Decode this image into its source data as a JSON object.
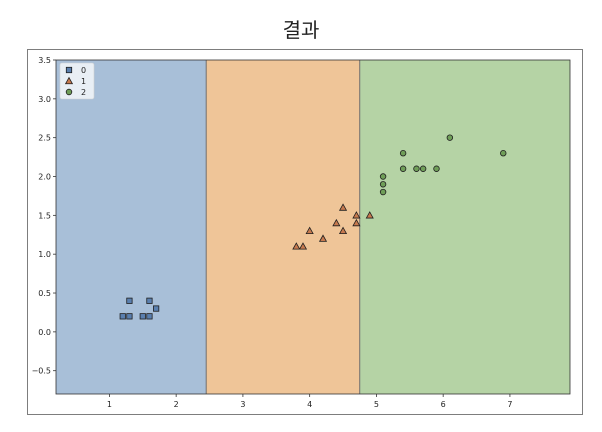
{
  "page": {
    "title": "결과"
  },
  "chart_data": {
    "type": "scatter",
    "xlim": [
      0.2,
      7.9
    ],
    "ylim": [
      -0.8,
      3.5
    ],
    "xticks": [
      1,
      2,
      3,
      4,
      5,
      6,
      7
    ],
    "yticks": [
      3.5,
      3.0,
      2.5,
      2.0,
      1.5,
      1.0,
      0.5,
      0.0,
      -0.5
    ],
    "ytick_labels": [
      "3.5",
      "3.0",
      "2.5",
      "2.0",
      "1.5",
      "1.0",
      "0.5",
      "0.0",
      "−0.5"
    ],
    "grid": false,
    "legend_position": "top-left",
    "regions": [
      {
        "class": "0",
        "x_range": [
          0.2,
          2.45
        ],
        "color": "#a8bfd8"
      },
      {
        "class": "1",
        "x_range": [
          2.45,
          4.75
        ],
        "color": "#efc598"
      },
      {
        "class": "2",
        "x_range": [
          4.75,
          7.9
        ],
        "color": "#b5d3a5"
      }
    ],
    "boundaries": [
      2.45,
      4.75
    ],
    "series": [
      {
        "name": "0",
        "marker": "square",
        "color": "#5a7fae",
        "points": [
          [
            1.2,
            0.2
          ],
          [
            1.3,
            0.2
          ],
          [
            1.3,
            0.4
          ],
          [
            1.5,
            0.2
          ],
          [
            1.6,
            0.2
          ],
          [
            1.6,
            0.4
          ],
          [
            1.7,
            0.3
          ]
        ]
      },
      {
        "name": "1",
        "marker": "triangle",
        "color": "#c7794e",
        "points": [
          [
            3.8,
            1.1
          ],
          [
            3.9,
            1.1
          ],
          [
            4.0,
            1.3
          ],
          [
            4.2,
            1.2
          ],
          [
            4.4,
            1.4
          ],
          [
            4.5,
            1.3
          ],
          [
            4.5,
            1.6
          ],
          [
            4.7,
            1.5
          ],
          [
            4.7,
            1.4
          ],
          [
            4.9,
            1.5
          ]
        ]
      },
      {
        "name": "2",
        "marker": "circle",
        "color": "#6f9e58",
        "points": [
          [
            5.1,
            1.8
          ],
          [
            5.1,
            1.9
          ],
          [
            5.1,
            2.0
          ],
          [
            5.4,
            2.1
          ],
          [
            5.4,
            2.3
          ],
          [
            5.6,
            2.1
          ],
          [
            5.7,
            2.1
          ],
          [
            5.9,
            2.1
          ],
          [
            6.1,
            2.5
          ],
          [
            6.9,
            2.3
          ]
        ]
      }
    ]
  }
}
